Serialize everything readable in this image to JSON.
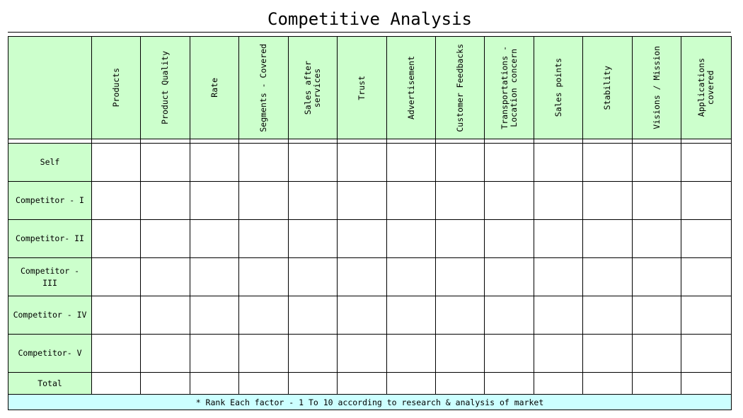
{
  "title": "Competitive Analysis",
  "columns": [
    "Products",
    "Product Quality",
    "Rate",
    "Segments - Covered",
    "Sales after\nservices",
    "Trust",
    "Advertisement",
    "Customer Feedbacks",
    "Transportations -\nLocation concern",
    "Sales points",
    "Stability",
    "Visions / Mission",
    "Applications\ncovered"
  ],
  "rows": [
    "Self",
    "Competitor - I",
    "Competitor- II",
    "Competitor -\nIII",
    "Competitor - IV",
    "Competitor- V"
  ],
  "total_label": "Total",
  "note": "* Rank Each factor - 1 To 10 according to research & analysis of market",
  "colors": {
    "header_fill": "#ccffcc",
    "note_fill": "#ccffff",
    "border": "#000000"
  }
}
